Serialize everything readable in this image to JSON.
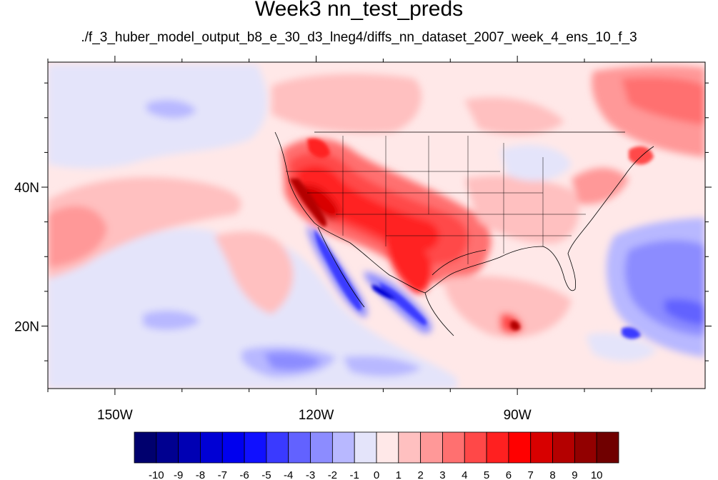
{
  "title": "Week3 nn_test_preds",
  "subtitle": "./f_3_huber_model_output_b8_e_30_d3_lneg4/diffs_nn_dataset_2007_week_4_ens_10_f_3",
  "map": {
    "lon_range": [
      -160,
      -62
    ],
    "lat_range": [
      11,
      58
    ],
    "lon_ticks": [
      {
        "value": -150,
        "label": "150W"
      },
      {
        "value": -120,
        "label": "120W"
      },
      {
        "value": -90,
        "label": "90W"
      }
    ],
    "lat_ticks": [
      {
        "value": 40,
        "label": "40N"
      },
      {
        "value": 20,
        "label": "20N"
      }
    ]
  },
  "colorbar": {
    "labels": [
      "-10",
      "-9",
      "-8",
      "-7",
      "-6",
      "-5",
      "-4",
      "-3",
      "-2",
      "-1",
      "0",
      "1",
      "2",
      "3",
      "4",
      "5",
      "6",
      "7",
      "8",
      "9",
      "10"
    ],
    "colors": [
      "#00006e",
      "#000090",
      "#0000b4",
      "#0000d4",
      "#0000ee",
      "#1010ff",
      "#3a3aff",
      "#6262ff",
      "#8c8cff",
      "#b8b8ff",
      "#e4e4fa",
      "#ffe8e8",
      "#ffc0c0",
      "#ff9898",
      "#ff7070",
      "#ff4848",
      "#ff2020",
      "#ff0000",
      "#d80000",
      "#b40000",
      "#920000",
      "#700000"
    ]
  }
}
